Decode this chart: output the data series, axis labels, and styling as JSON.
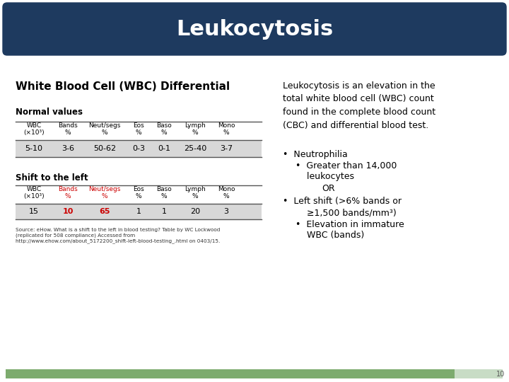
{
  "title": "Leukocytosis",
  "title_bg": "#1e3a5f",
  "title_color": "#ffffff",
  "bg_color": "#ffffff",
  "left_section_title": "White Blood Cell (WBC) Differential",
  "normal_values_label": "Normal values",
  "shift_label": "Shift to the left",
  "table_headers": [
    "WBC\n(×10³)",
    "Bands\n%",
    "Neut/segs\n%",
    "Eos\n%",
    "Baso\n%",
    "Lymph\n%",
    "Mono\n%"
  ],
  "normal_row": [
    "5-10",
    "3-6",
    "50-62",
    "0-3",
    "0-1",
    "25-40",
    "3-7"
  ],
  "shift_row": [
    "15",
    "10",
    "65",
    "1",
    "1",
    "20",
    "3"
  ],
  "shift_row_colors": [
    "#000000",
    "#cc0000",
    "#cc0000",
    "#000000",
    "#000000",
    "#000000",
    "#000000"
  ],
  "right_para": "Leukocytosis is an elevation in the\ntotal white blood cell (WBC) count\nfound in the complete blood count\n(CBC) and differential blood test.",
  "bullets": [
    {
      "text": "•  Neutrophilia",
      "indent": 0,
      "bold": false
    },
    {
      "text": "•  Greater than 14,000",
      "indent": 1,
      "bold": false
    },
    {
      "text": "    leukocytes",
      "indent": 1,
      "bold": false
    },
    {
      "text": "OR",
      "indent": 2,
      "bold": false
    },
    {
      "text": "•  Left shift (>6% bands or",
      "indent": 0,
      "bold": false
    },
    {
      "text": "    ≥1,500 bands/mm³)",
      "indent": 1,
      "bold": false
    },
    {
      "text": "•  Elevation in immature",
      "indent": 1,
      "bold": false
    },
    {
      "text": "    WBC (bands)",
      "indent": 1,
      "bold": false
    }
  ],
  "source_text": "Source: eHow. What is a shift to the left in blood testing? Table by WC Lockwood\n(replicated for 508 compliance) Accessed from\nhttp://www.ehow.com/about_5172200_shift-left-blood-testing_.html on 0403/15.",
  "footer_bar_color": "#7dab6e",
  "footer_bar_light": "#c8dcc5",
  "page_number": "10",
  "table_line_color": "#555555",
  "table_bg_row": "#d8d8d8",
  "col_widths_norm": [
    52,
    44,
    60,
    36,
    36,
    52,
    36
  ],
  "col_widths_shift": [
    52,
    44,
    60,
    36,
    36,
    52,
    36
  ]
}
